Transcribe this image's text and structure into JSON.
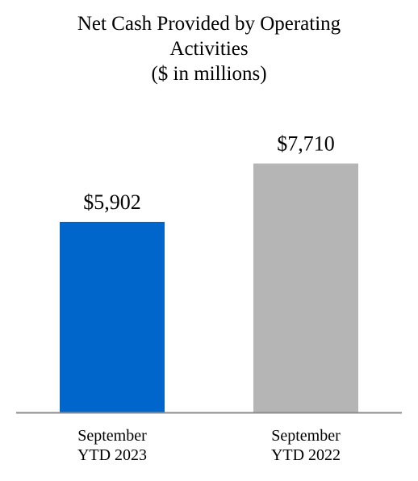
{
  "chart_data": {
    "type": "bar",
    "title_lines": [
      "Net Cash Provided by Operating",
      "Activities",
      "($ in millions)"
    ],
    "categories": [
      {
        "lines": [
          "September",
          "YTD 2023"
        ]
      },
      {
        "lines": [
          "September",
          "YTD 2022"
        ]
      }
    ],
    "values": [
      5902,
      7710
    ],
    "data_labels": [
      "$5,902",
      "$7,710"
    ],
    "colors": [
      "#0066CC",
      "#B5B5B5"
    ],
    "ylim": [
      0,
      8500
    ],
    "grid": false,
    "legend": false
  }
}
